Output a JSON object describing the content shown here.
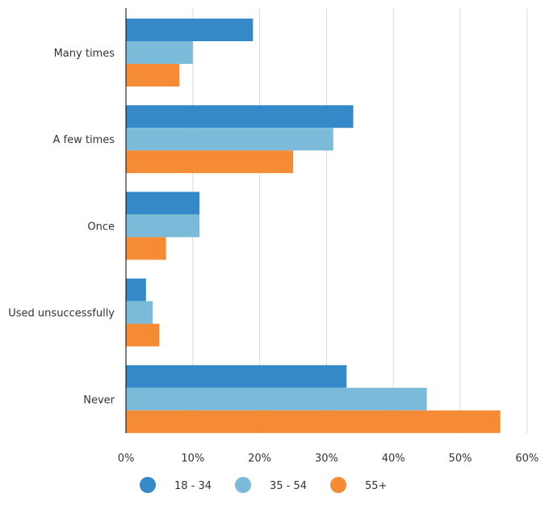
{
  "chart_data": {
    "type": "bar",
    "orientation": "horizontal",
    "categories": [
      "Many times",
      "A few times",
      "Once",
      "Used unsuccessfully",
      "Never"
    ],
    "series": [
      {
        "name": "18 - 34",
        "color": "#3689c9",
        "values": [
          19,
          34,
          11,
          3,
          33
        ]
      },
      {
        "name": "35 - 54",
        "color": "#7cbada",
        "values": [
          10,
          31,
          11,
          4,
          45
        ]
      },
      {
        "name": "55+",
        "color": "#f58b35",
        "values": [
          8,
          25,
          6,
          5,
          56
        ]
      }
    ],
    "x_ticks": [
      "0%",
      "10%",
      "20%",
      "30%",
      "40%",
      "50%",
      "60%"
    ],
    "xlim": [
      0,
      60
    ],
    "grid": true,
    "legend_position": "bottom-left",
    "axis_color": "#000000",
    "grid_color": "#d9d9d9"
  }
}
